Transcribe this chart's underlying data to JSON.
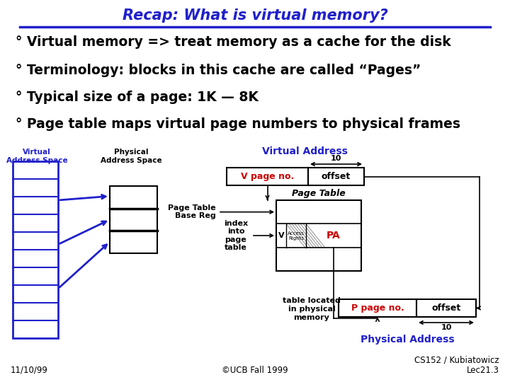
{
  "bg_color": "#ffffff",
  "title": "Recap: What is virtual memory?",
  "title_color": "#2020cc",
  "title_fontsize": 15,
  "bullets": [
    "° Virtual memory => treat memory as a cache for the disk",
    "° Terminology: blocks in this cache are called “Pages”",
    "° Typical size of a page: 1K — 8K",
    "° Page table maps virtual page numbers to physical frames"
  ],
  "bullet_fontsize": 13.5,
  "footer_left": "11/10/99",
  "footer_center": "©UCB Fall 1999",
  "footer_right": "CS152 / Kubiatowicz\nLec21.3",
  "footer_fontsize": 8.5,
  "blue_color": "#2020cc",
  "red_color": "#cc0000",
  "black_color": "#000000",
  "label_vas": "Virtual\nAddress Space",
  "label_pas": "Physical\nAddress Space",
  "label_va": "Virtual Address",
  "label_pa": "Physical Address",
  "label_vpn": "V page no.",
  "label_offset": "offset",
  "label_ptbr": "Page Table\nBase Reg",
  "label_index": "index\ninto\npage\ntable",
  "label_pt": "Page Table",
  "label_v": "V",
  "label_ar": "Access\nRights",
  "label_PA": "PA",
  "label_ppn": "P page no.",
  "label_table_loc": "table located\nin physical\nmemory",
  "label_10": "10"
}
